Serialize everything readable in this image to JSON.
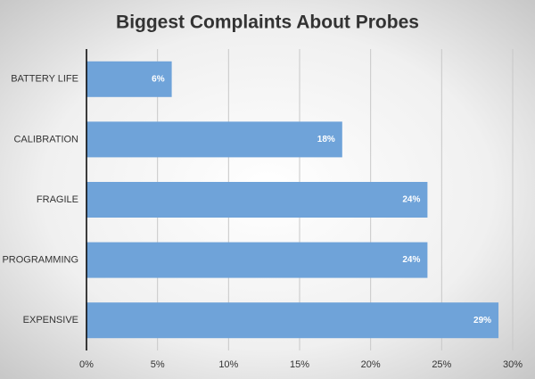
{
  "chart_data": {
    "type": "barh",
    "title": "Biggest Complaints About Probes",
    "categories": [
      "BATTERY LIFE",
      "CALIBRATION",
      "FRAGILE",
      "PROGRAMMING",
      "EXPENSIVE"
    ],
    "values": [
      6,
      18,
      24,
      24,
      29
    ],
    "value_labels": [
      "6%",
      "18%",
      "24%",
      "24%",
      "29%"
    ],
    "color": "#6fa3d9",
    "xlim": [
      0,
      30
    ],
    "xticks": [
      {
        "value": 0,
        "label": "0%"
      },
      {
        "value": 5,
        "label": "5%"
      },
      {
        "value": 10,
        "label": "10%"
      },
      {
        "value": 15,
        "label": "15%"
      },
      {
        "value": 20,
        "label": "20%"
      },
      {
        "value": 25,
        "label": "25%"
      },
      {
        "value": 30,
        "label": "30%"
      }
    ],
    "grid": true
  }
}
